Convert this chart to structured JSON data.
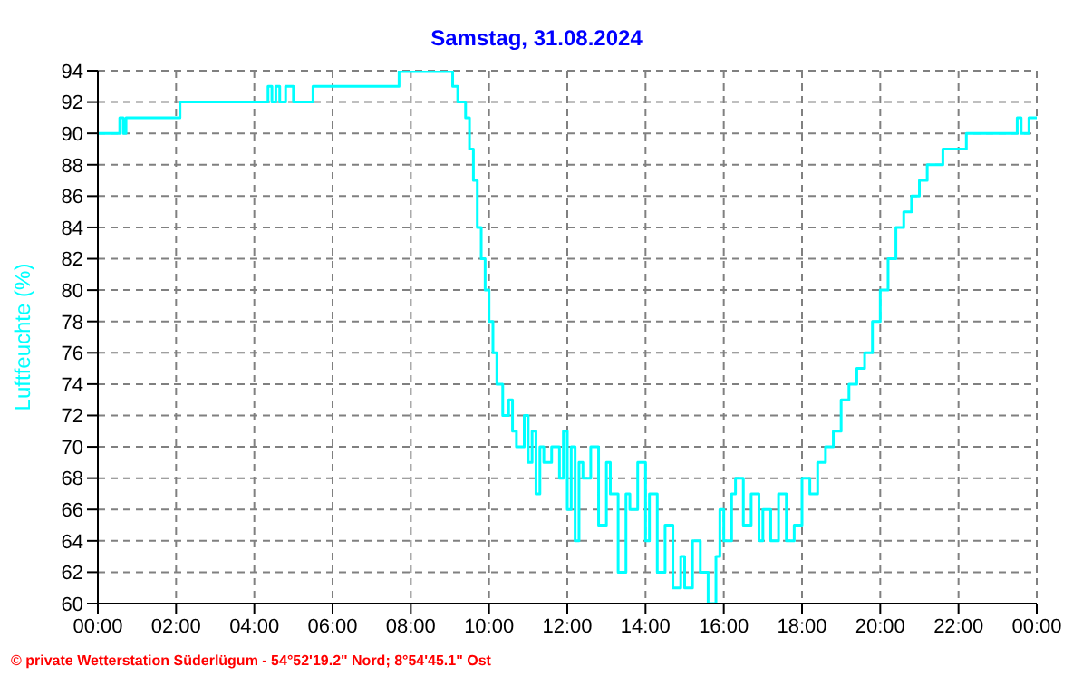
{
  "chart_data": {
    "type": "step",
    "title": "Samstag, 31.08.2024",
    "ylabel": "Luftfeuchte (%)",
    "annotations": [
      "© private Wetterstation Süderlügum - 54°52'19.2\" Nord; 8°54'45.1\" Ost"
    ],
    "x": [
      0,
      0.56,
      0.65,
      0.72,
      2.1,
      4.35,
      4.45,
      4.55,
      4.65,
      4.8,
      5.0,
      5.5,
      7.7,
      9.07,
      9.2,
      9.4,
      9.5,
      9.6,
      9.7,
      9.8,
      9.9,
      10.0,
      10.1,
      10.2,
      10.35,
      10.5,
      10.6,
      10.7,
      10.9,
      11.0,
      11.1,
      11.2,
      11.3,
      11.4,
      11.6,
      11.8,
      11.9,
      12.0,
      12.1,
      12.2,
      12.3,
      12.4,
      12.6,
      12.8,
      13.0,
      13.1,
      13.3,
      13.5,
      13.6,
      13.8,
      14.0,
      14.1,
      14.3,
      14.5,
      14.7,
      14.9,
      15.0,
      15.2,
      15.4,
      15.6,
      15.8,
      15.9,
      16.0,
      16.2,
      16.3,
      16.5,
      16.7,
      16.9,
      17.0,
      17.2,
      17.4,
      17.6,
      17.8,
      18.0,
      18.2,
      18.4,
      18.6,
      18.8,
      19.0,
      19.2,
      19.4,
      19.6,
      19.8,
      20.0,
      20.2,
      20.4,
      20.6,
      20.8,
      21.0,
      21.2,
      21.6,
      21.8,
      22.2,
      23.5,
      23.6,
      23.8,
      24
    ],
    "series": [
      {
        "color": "#00ffff",
        "values": [
          90,
          91,
          90,
          91,
          92,
          93,
          92,
          93,
          92,
          93,
          92,
          93,
          94,
          93,
          92,
          91,
          89,
          87,
          84,
          82,
          80,
          78,
          76,
          74,
          72,
          73,
          71,
          70,
          72,
          69,
          71,
          67,
          70,
          69,
          70,
          68,
          71,
          66,
          70,
          64,
          69,
          68,
          70,
          65,
          69,
          67,
          62,
          67,
          66,
          69,
          64,
          67,
          62,
          65,
          61,
          63,
          61,
          64,
          62,
          60,
          63,
          66,
          64,
          67,
          68,
          65,
          67,
          64,
          66,
          64,
          67,
          64,
          65,
          68,
          67,
          69,
          70,
          71,
          73,
          74,
          75,
          76,
          78,
          80,
          82,
          84,
          85,
          86,
          87,
          88,
          89,
          89,
          90,
          91,
          90,
          91,
          91
        ]
      }
    ],
    "ylim": [
      60,
      94
    ],
    "yticks": [
      60,
      62,
      64,
      66,
      68,
      70,
      72,
      74,
      76,
      78,
      80,
      82,
      84,
      86,
      88,
      90,
      92,
      94
    ],
    "xlim": [
      0,
      24
    ],
    "xticks": [
      {
        "value": 0,
        "label": "00:00"
      },
      {
        "value": 2,
        "label": "02:00"
      },
      {
        "value": 4,
        "label": "04:00"
      },
      {
        "value": 6,
        "label": "06:00"
      },
      {
        "value": 8,
        "label": "08:00"
      },
      {
        "value": 10,
        "label": "10:00"
      },
      {
        "value": 12,
        "label": "12:00"
      },
      {
        "value": 14,
        "label": "14:00"
      },
      {
        "value": 16,
        "label": "16:00"
      },
      {
        "value": 18,
        "label": "18:00"
      },
      {
        "value": 20,
        "label": "20:00"
      },
      {
        "value": 22,
        "label": "22:00"
      },
      {
        "value": 24,
        "label": "00:00"
      }
    ],
    "grid": true,
    "legend": false,
    "marker": "none",
    "line_style": "solid"
  }
}
